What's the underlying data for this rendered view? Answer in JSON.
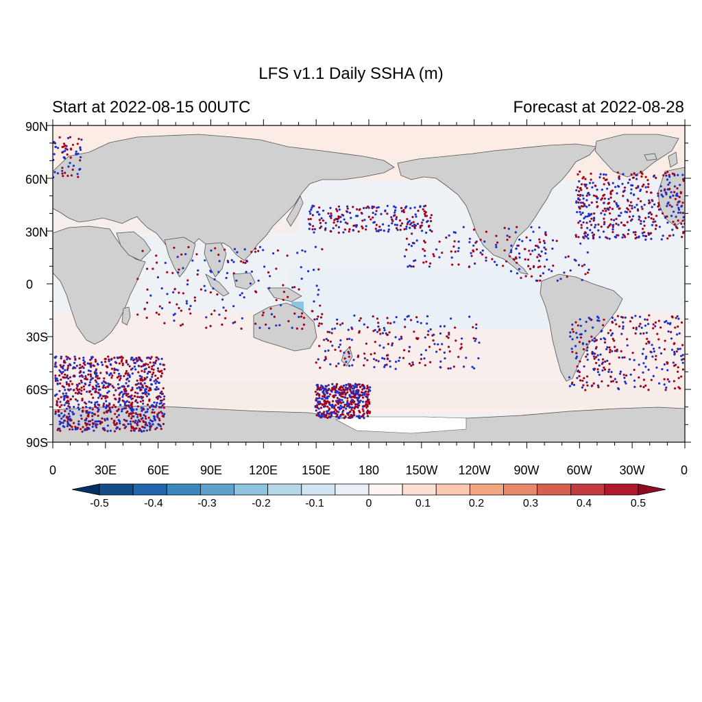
{
  "title": "LFS v1.1 Daily SSHA (m)",
  "left_string": "Start at 2022-08-15 00UTC",
  "right_string": "Forecast at 2022-08-28",
  "colors": {
    "land": "#d0d0d0",
    "coast": "#505050",
    "ocean_base": "#eef2f7",
    "ice": "#ffffff",
    "marker_blue": "#1d2fc4",
    "marker_red": "#a3001b"
  },
  "map": {
    "lat_ticks": [
      "90N",
      "60N",
      "30N",
      "0",
      "30S",
      "60S",
      "90S"
    ],
    "lon_ticks": [
      "0",
      "30E",
      "60E",
      "90E",
      "120E",
      "150E",
      "180",
      "150W",
      "120W",
      "90W",
      "60W",
      "30W",
      "0"
    ]
  },
  "colorbar": {
    "levels": [
      "-0.5",
      "-0.4",
      "-0.3",
      "-0.2",
      "-0.1",
      "0",
      "0.1",
      "0.2",
      "0.3",
      "0.4",
      "0.5"
    ],
    "colors": [
      "#053061",
      "#134c87",
      "#2166ac",
      "#3a87bf",
      "#5ea2cc",
      "#8ec4de",
      "#b5d7e8",
      "#d1e5f0",
      "#e8f0f6",
      "#fbf4f1",
      "#fde0d5",
      "#fcc8b0",
      "#f4a582",
      "#e8876a",
      "#d6604d",
      "#c23b3e",
      "#b2182b",
      "#8c0d25"
    ]
  }
}
